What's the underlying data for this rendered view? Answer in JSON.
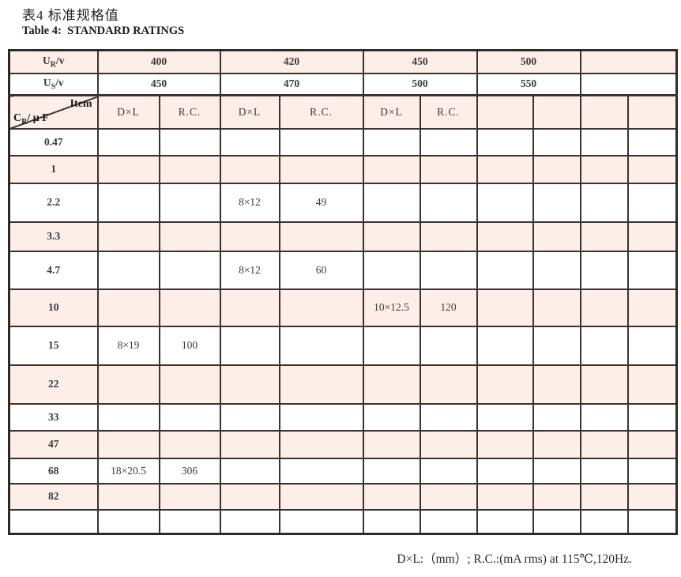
{
  "page": {
    "title_cn": "表4 标准规格值",
    "title_en": "Table 4:  STANDARD RATINGS",
    "footnote": "D×L:（mm）; R.C.:(mA rms) at 115℃,120Hz."
  },
  "table": {
    "ur": {
      "base": "U",
      "sub": "R",
      "suffix": "/v"
    },
    "us": {
      "base": "U",
      "sub": "S",
      "suffix": "/v"
    },
    "cr": {
      "base": "C",
      "sub": "R",
      "suffix": "/ μ F"
    },
    "item_label": "Item",
    "ur_values": [
      "400",
      "420",
      "450",
      "500",
      ""
    ],
    "us_values": [
      "450",
      "470",
      "500",
      "550",
      ""
    ],
    "item_cols": [
      "D×L",
      "R.C.",
      "D×L",
      "R.C.",
      "D×L",
      "R.C.",
      "",
      "",
      "",
      ""
    ],
    "rows": [
      {
        "label": "0.47",
        "cells": [
          "",
          "",
          "",
          "",
          "",
          "",
          "",
          "",
          "",
          ""
        ]
      },
      {
        "label": "1",
        "cells": [
          "",
          "",
          "",
          "",
          "",
          "",
          "",
          "",
          "",
          ""
        ]
      },
      {
        "label": "2.2",
        "cells": [
          "",
          "",
          "8×12",
          "49",
          "",
          "",
          "",
          "",
          "",
          ""
        ]
      },
      {
        "label": "3.3",
        "cells": [
          "",
          "",
          "",
          "",
          "",
          "",
          "",
          "",
          "",
          ""
        ]
      },
      {
        "label": "4.7",
        "cells": [
          "",
          "",
          "8×12",
          "60",
          "",
          "",
          "",
          "",
          "",
          ""
        ]
      },
      {
        "label": "10",
        "cells": [
          "",
          "",
          "",
          "",
          "10×12.5",
          "120",
          "",
          "",
          "",
          ""
        ]
      },
      {
        "label": "15",
        "cells": [
          "8×19",
          "100",
          "",
          "",
          "",
          "",
          "",
          "",
          "",
          ""
        ]
      },
      {
        "label": "22",
        "cells": [
          "",
          "",
          "",
          "",
          "",
          "",
          "",
          "",
          "",
          ""
        ]
      },
      {
        "label": "33",
        "cells": [
          "",
          "",
          "",
          "",
          "",
          "",
          "",
          "",
          "",
          ""
        ]
      },
      {
        "label": "47",
        "cells": [
          "",
          "",
          "",
          "",
          "",
          "",
          "",
          "",
          "",
          ""
        ]
      },
      {
        "label": "68",
        "cells": [
          "18×20.5",
          "306",
          "",
          "",
          "",
          "",
          "",
          "",
          "",
          ""
        ]
      },
      {
        "label": "82",
        "cells": [
          "",
          "",
          "",
          "",
          "",
          "",
          "",
          "",
          "",
          ""
        ]
      },
      {
        "label": "",
        "cells": [
          "",
          "",
          "",
          "",
          "",
          "",
          "",
          "",
          "",
          ""
        ]
      }
    ],
    "colors": {
      "row_shade": "#fdeee8",
      "border": "#3a3331"
    }
  }
}
